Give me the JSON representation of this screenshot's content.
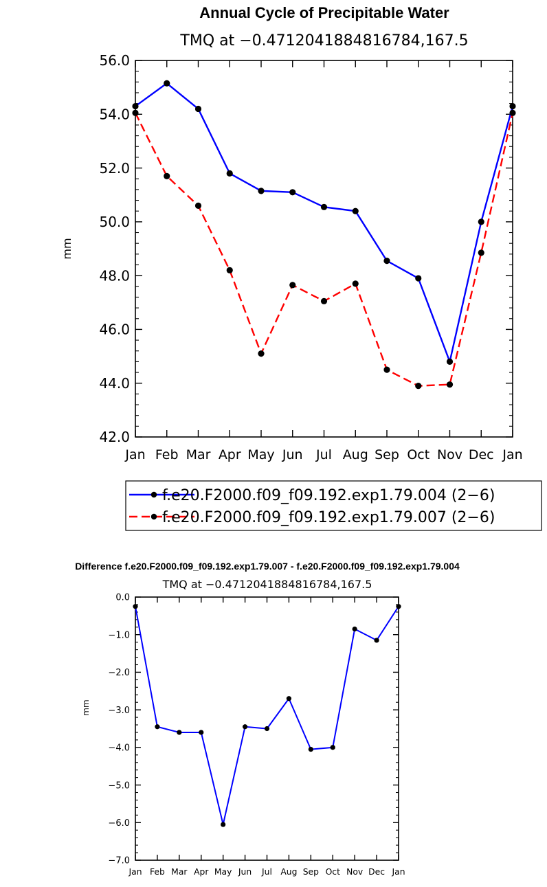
{
  "chart_data": [
    {
      "type": "line",
      "title": "Annual Cycle of Precipitable Water",
      "subtitle": "TMQ at −0.4712041884816784,167.5",
      "ylabel": "mm",
      "xlabel": "",
      "ylim": [
        42.0,
        56.0
      ],
      "yticks": [
        "42.0",
        "44.0",
        "46.0",
        "48.0",
        "50.0",
        "52.0",
        "54.0",
        "56.0"
      ],
      "categories": [
        "Jan",
        "Feb",
        "Mar",
        "Apr",
        "May",
        "Jun",
        "Jul",
        "Aug",
        "Sep",
        "Oct",
        "Nov",
        "Dec",
        "Jan"
      ],
      "series": [
        {
          "name": "f.e20.F2000.f09_f09.192.exp1.79.004 (2−6)",
          "color": "#0000ff",
          "dash": "solid",
          "values": [
            54.3,
            55.15,
            54.2,
            51.8,
            51.15,
            51.1,
            50.55,
            50.4,
            48.55,
            47.9,
            44.8,
            50.0,
            54.3
          ]
        },
        {
          "name": "f.e20.F2000.f09_f09.192.exp1.79.007 (2−6)",
          "color": "#ff0000",
          "dash": "dashed",
          "values": [
            54.05,
            51.7,
            50.6,
            48.2,
            45.1,
            47.65,
            47.05,
            47.7,
            44.5,
            43.9,
            43.95,
            48.85,
            54.05
          ]
        }
      ]
    },
    {
      "type": "line",
      "title": "Difference f.e20.F2000.f09_f09.192.exp1.79.007 - f.e20.F2000.f09_f09.192.exp1.79.004",
      "subtitle": "TMQ at −0.4712041884816784,167.5",
      "ylabel": "mm",
      "xlabel": "",
      "ylim": [
        -7.0,
        0.0
      ],
      "yticks": [
        "−7.0",
        "−6.0",
        "−5.0",
        "−4.0",
        "−3.0",
        "−2.0",
        "−1.0",
        "0.0"
      ],
      "categories": [
        "Jan",
        "Feb",
        "Mar",
        "Apr",
        "May",
        "Jun",
        "Jul",
        "Aug",
        "Sep",
        "Oct",
        "Nov",
        "Dec",
        "Jan"
      ],
      "series": [
        {
          "name": "difference",
          "color": "#0000ff",
          "dash": "solid",
          "values": [
            -0.25,
            -3.45,
            -3.6,
            -3.6,
            -6.05,
            -3.45,
            -3.5,
            -2.7,
            -4.05,
            -4.0,
            -0.85,
            -1.15,
            -0.25
          ]
        }
      ]
    }
  ]
}
